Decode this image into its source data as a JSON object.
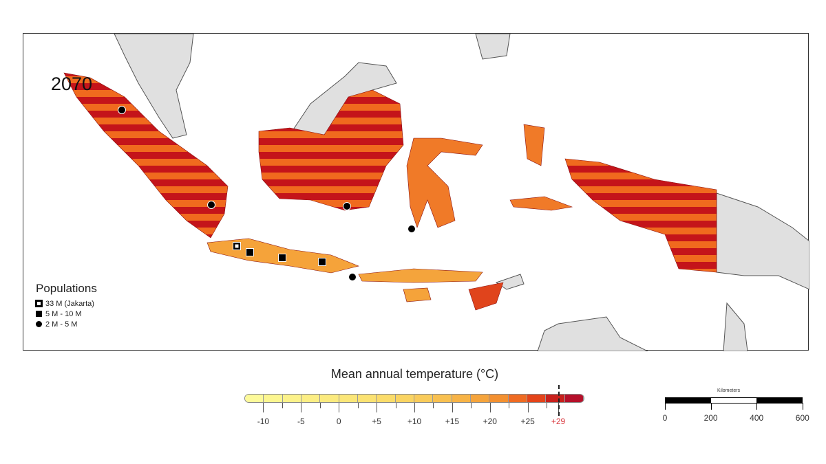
{
  "map": {
    "year": "2070"
  },
  "legend": {
    "title": "Populations",
    "items": [
      {
        "symbol": "square-hollow",
        "label": "33 M (Jakarta)"
      },
      {
        "symbol": "square",
        "label": "5 M - 10 M"
      },
      {
        "symbol": "circle",
        "label": "2 M - 5 M"
      }
    ]
  },
  "colorbar": {
    "title": "Mean annual temperature (°C)",
    "colors": [
      "#fdfa9a",
      "#fcf690",
      "#fcf28a",
      "#fcee84",
      "#fbea7e",
      "#fbe678",
      "#fbe272",
      "#fbdc6a",
      "#fad462",
      "#f9cb5a",
      "#f8c050",
      "#f7b346",
      "#f5a43c",
      "#f39030",
      "#ef6b22",
      "#e4441a",
      "#c8201c",
      "#b5102a"
    ],
    "ticks": [
      "-10",
      "-5",
      "0",
      "+5",
      "+10",
      "+15",
      "+20",
      "+25",
      "+29"
    ],
    "threshold": "+29",
    "threshold_color": "#d9343a"
  },
  "scale_bar": {
    "title": "Kilometers",
    "labels": [
      "0",
      "200",
      "400",
      "600"
    ]
  },
  "cities": [
    {
      "type": "jakarta",
      "name": "Jakarta"
    },
    {
      "type": "large"
    },
    {
      "type": "large"
    },
    {
      "type": "large"
    },
    {
      "type": "medium"
    },
    {
      "type": "medium"
    },
    {
      "type": "medium"
    },
    {
      "type": "medium"
    },
    {
      "type": "medium"
    }
  ]
}
